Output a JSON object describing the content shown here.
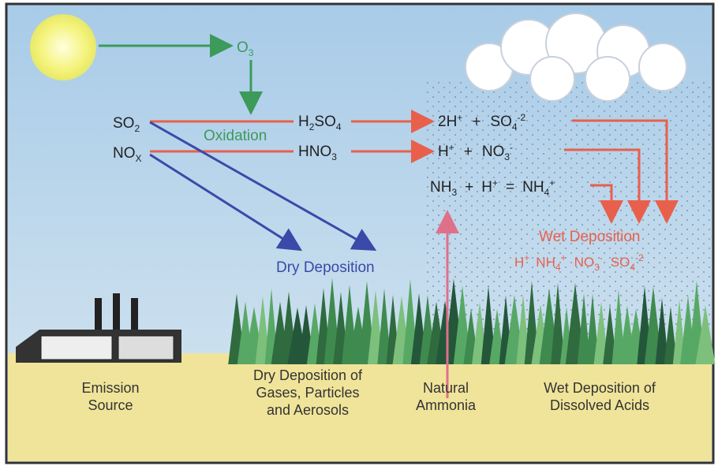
{
  "sky": {
    "ozone": [
      "O",
      "3"
    ],
    "oxidation": "Oxidation"
  },
  "emissions": {
    "sulfur_dioxide": [
      "SO",
      "2"
    ],
    "nitrogen_oxides": [
      "NO",
      "X"
    ]
  },
  "acids": {
    "sulfuric": [
      "H",
      "2",
      "SO",
      "4"
    ],
    "nitric": [
      "HNO",
      "3"
    ]
  },
  "ions": {
    "row1": [
      "2H",
      "+",
      "+",
      "SO",
      "4",
      "-2"
    ],
    "row2": [
      "H",
      "+",
      "+",
      "NO",
      "3",
      "-"
    ],
    "row3": [
      "NH",
      "3",
      "+",
      "H",
      "+",
      "=",
      "NH",
      "4",
      "+"
    ]
  },
  "wet_deposition": {
    "title": "Wet Deposition",
    "ions": [
      "H",
      "+",
      "NH",
      "4",
      "+",
      "NO",
      "3",
      "-",
      "SO",
      "4",
      "-2"
    ]
  },
  "dry_deposition": {
    "title": "Dry Deposition"
  },
  "ground_labels": {
    "emission_source": [
      "Emission",
      "Source"
    ],
    "dry_deposition": [
      "Dry Deposition of",
      "Gases, Particles",
      "and Aerosols"
    ],
    "natural_ammonia": [
      "Natural",
      "Ammonia"
    ],
    "wet_deposition": [
      "Wet Deposition of",
      "Dissolved Acids"
    ]
  }
}
